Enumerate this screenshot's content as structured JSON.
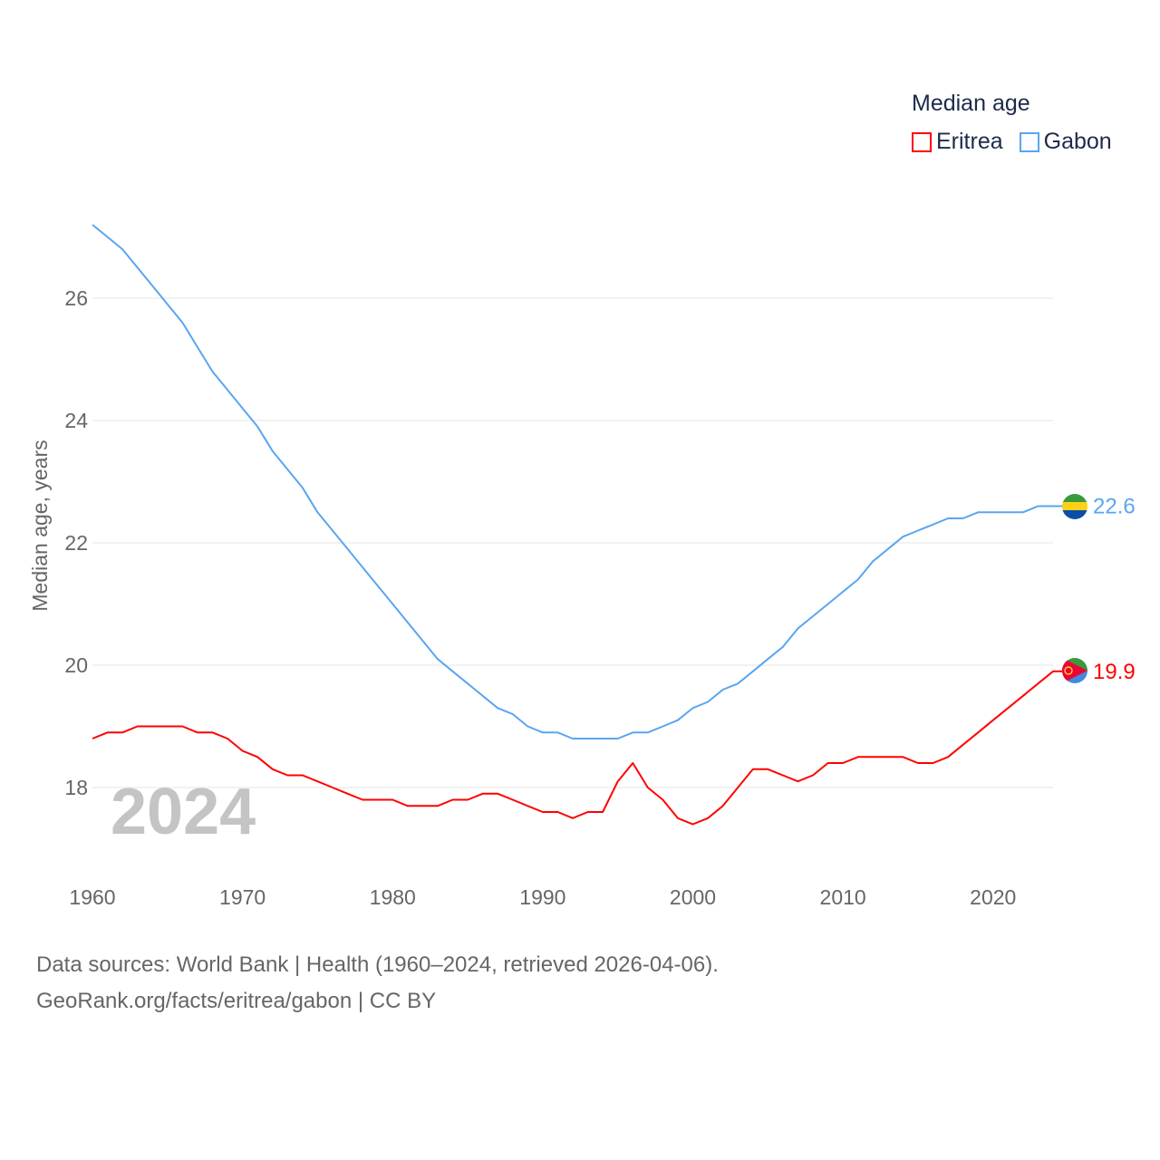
{
  "legend": {
    "title": "Median age",
    "items": [
      {
        "label": "Eritrea",
        "color": "#ff0000"
      },
      {
        "label": "Gabon",
        "color": "#5aa5f0"
      }
    ]
  },
  "year_watermark": "2024",
  "source": {
    "line1": "Data sources: World Bank | Health (1960–2024, retrieved 2026-04-06).",
    "line2": "GeoRank.org/facts/eritrea/gabon | CC BY"
  },
  "chart_data": {
    "type": "line",
    "title": "Median age",
    "xlabel": "",
    "ylabel": "Median age, years",
    "xlim": [
      1960,
      2024
    ],
    "ylim": [
      17,
      27.5
    ],
    "xticks": [
      "1960",
      "1970",
      "1980",
      "1990",
      "2000",
      "2010",
      "2020"
    ],
    "yticks": [
      "18",
      "20",
      "22",
      "24",
      "26"
    ],
    "grid": true,
    "legend_position": "top-right",
    "x_start": 1960,
    "series": [
      {
        "name": "Eritrea",
        "color": "#ff0000",
        "end_label": "19.9",
        "values": [
          18.8,
          18.9,
          18.9,
          19.0,
          19.0,
          19.0,
          19.0,
          18.9,
          18.9,
          18.8,
          18.6,
          18.5,
          18.3,
          18.2,
          18.2,
          18.1,
          18.0,
          17.9,
          17.8,
          17.8,
          17.8,
          17.7,
          17.7,
          17.7,
          17.8,
          17.8,
          17.9,
          17.9,
          17.8,
          17.7,
          17.6,
          17.6,
          17.5,
          17.6,
          17.6,
          18.1,
          18.4,
          18.0,
          17.8,
          17.5,
          17.4,
          17.5,
          17.7,
          18.0,
          18.3,
          18.3,
          18.2,
          18.1,
          18.2,
          18.4,
          18.4,
          18.5,
          18.5,
          18.5,
          18.5,
          18.4,
          18.4,
          18.5,
          18.7,
          18.9,
          19.1,
          19.3,
          19.5,
          19.7,
          19.9
        ]
      },
      {
        "name": "Gabon",
        "color": "#5aa5f0",
        "end_label": "22.6",
        "values": [
          27.2,
          27.0,
          26.8,
          26.5,
          26.2,
          25.9,
          25.6,
          25.2,
          24.8,
          24.5,
          24.2,
          23.9,
          23.5,
          23.2,
          22.9,
          22.5,
          22.2,
          21.9,
          21.6,
          21.3,
          21.0,
          20.7,
          20.4,
          20.1,
          19.9,
          19.7,
          19.5,
          19.3,
          19.2,
          19.0,
          18.9,
          18.9,
          18.8,
          18.8,
          18.8,
          18.8,
          18.9,
          18.9,
          19.0,
          19.1,
          19.3,
          19.4,
          19.6,
          19.7,
          19.9,
          20.1,
          20.3,
          20.6,
          20.8,
          21.0,
          21.2,
          21.4,
          21.7,
          21.9,
          22.1,
          22.2,
          22.3,
          22.4,
          22.4,
          22.5,
          22.5,
          22.5,
          22.5,
          22.6,
          22.6
        ]
      }
    ]
  }
}
